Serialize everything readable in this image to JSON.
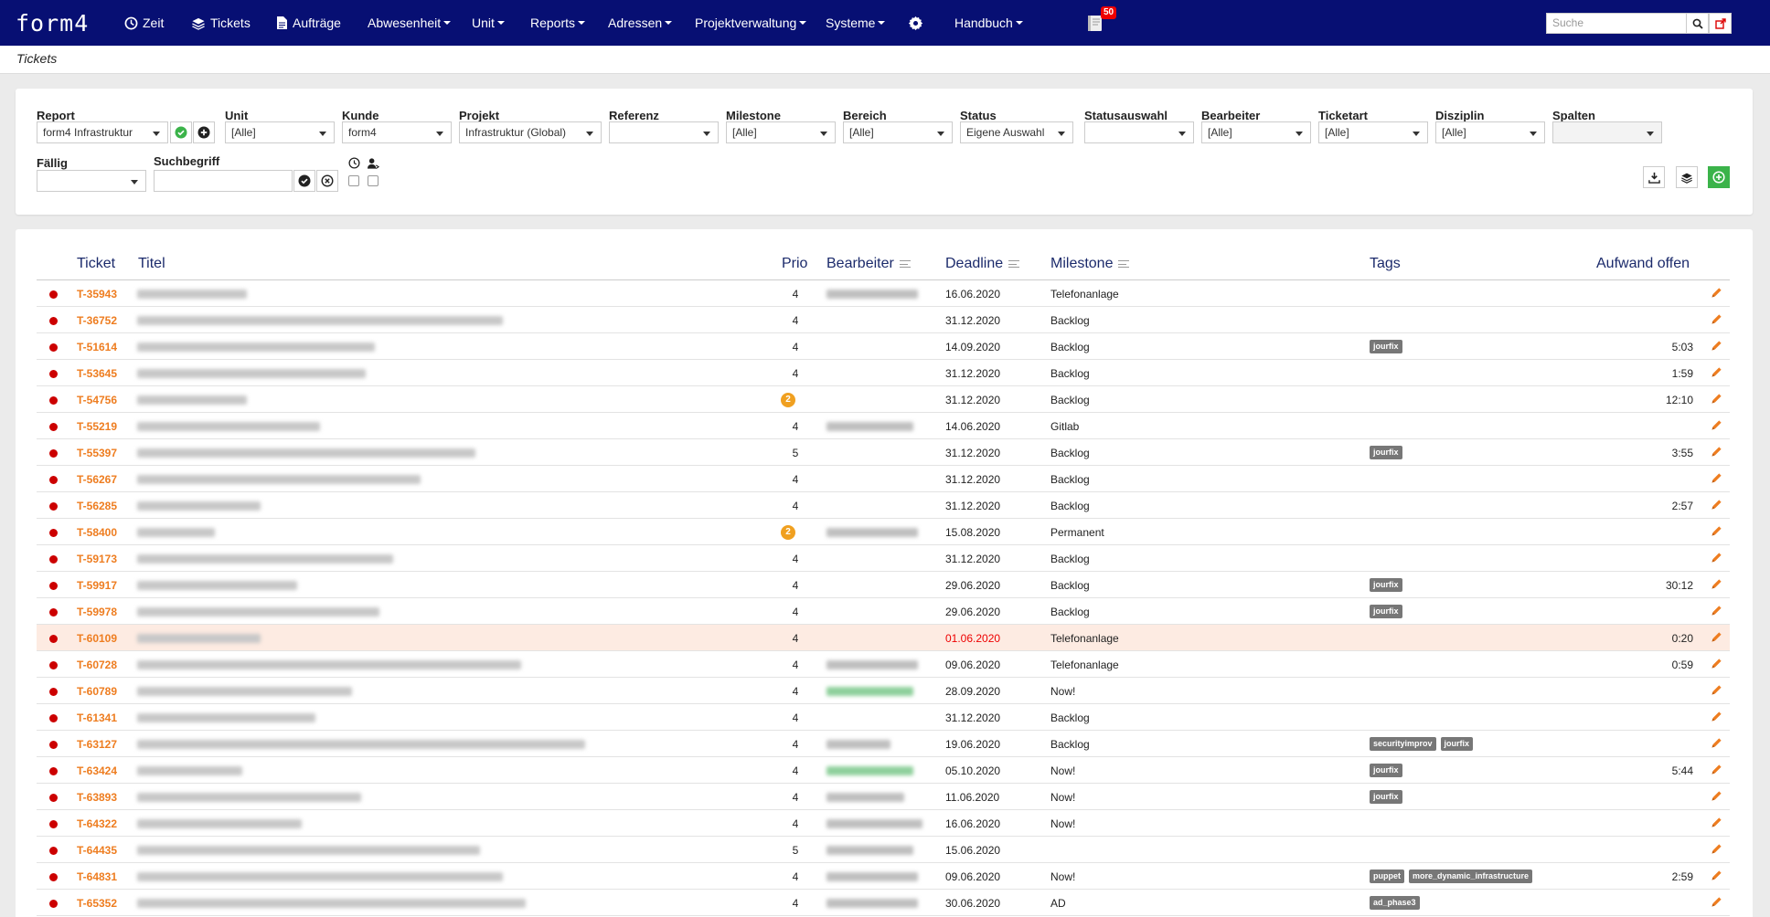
{
  "app": {
    "logo": "form4",
    "notification_count": "50"
  },
  "nav": [
    {
      "label": "Zeit",
      "icon": "clock-icon"
    },
    {
      "label": "Tickets",
      "icon": "layers-icon"
    },
    {
      "label": "Aufträge",
      "icon": "document-icon"
    },
    {
      "label": "Abwesenheit"
    },
    {
      "label": "Unit"
    },
    {
      "label": "Reports"
    },
    {
      "label": "Adressen"
    },
    {
      "label": "Projektverwaltung"
    },
    {
      "label": "Systeme"
    },
    {
      "label": "Handbuch"
    }
  ],
  "search": {
    "placeholder": "Suche"
  },
  "breadcrumb": "Tickets",
  "filters": {
    "report": {
      "label": "Report",
      "value": "form4 Infrastruktur"
    },
    "unit": {
      "label": "Unit",
      "value": "[Alle]"
    },
    "kunde": {
      "label": "Kunde",
      "value": "form4"
    },
    "projekt": {
      "label": "Projekt",
      "value": "Infrastruktur (Global)"
    },
    "referenz": {
      "label": "Referenz",
      "value": ""
    },
    "milestone": {
      "label": "Milestone",
      "value": "[Alle]"
    },
    "bereich": {
      "label": "Bereich",
      "value": "[Alle]"
    },
    "status": {
      "label": "Status",
      "value": "Eigene Auswahl"
    },
    "statusauswahl": {
      "label": "Statusauswahl",
      "value": ""
    },
    "bearbeiter": {
      "label": "Bearbeiter",
      "value": "[Alle]"
    },
    "ticketart": {
      "label": "Ticketart",
      "value": "[Alle]"
    },
    "disziplin": {
      "label": "Disziplin",
      "value": "[Alle]"
    },
    "spalten": {
      "label": "Spalten",
      "value": ""
    },
    "faellig": {
      "label": "Fällig",
      "value": ""
    },
    "suchbegriff": {
      "label": "Suchbegriff",
      "value": ""
    }
  },
  "table": {
    "headers": {
      "ticket": "Ticket",
      "titel": "Titel",
      "prio": "Prio",
      "bearbeiter": "Bearbeiter",
      "deadline": "Deadline",
      "milestone": "Milestone",
      "tags": "Tags",
      "aufwand": "Aufwand offen"
    },
    "rows": [
      {
        "ticket": "T-35943",
        "prio": "4",
        "deadline": "16.06.2020",
        "milestone": "Telefonanlage",
        "tags": [],
        "aufwand": ""
      },
      {
        "ticket": "T-36752",
        "prio": "4",
        "deadline": "31.12.2020",
        "milestone": "Backlog",
        "tags": [],
        "aufwand": ""
      },
      {
        "ticket": "T-51614",
        "prio": "4",
        "deadline": "14.09.2020",
        "milestone": "Backlog",
        "tags": [
          "jourfix"
        ],
        "aufwand": "5:03"
      },
      {
        "ticket": "T-53645",
        "prio": "4",
        "deadline": "31.12.2020",
        "milestone": "Backlog",
        "tags": [],
        "aufwand": "1:59"
      },
      {
        "ticket": "T-54756",
        "prio": "2",
        "deadline": "31.12.2020",
        "milestone": "Backlog",
        "tags": [],
        "aufwand": "12:10"
      },
      {
        "ticket": "T-55219",
        "prio": "4",
        "deadline": "14.06.2020",
        "milestone": "Gitlab",
        "tags": [],
        "aufwand": ""
      },
      {
        "ticket": "T-55397",
        "prio": "5",
        "deadline": "31.12.2020",
        "milestone": "Backlog",
        "tags": [
          "jourfix"
        ],
        "aufwand": "3:55"
      },
      {
        "ticket": "T-56267",
        "prio": "4",
        "deadline": "31.12.2020",
        "milestone": "Backlog",
        "tags": [],
        "aufwand": ""
      },
      {
        "ticket": "T-56285",
        "prio": "4",
        "deadline": "31.12.2020",
        "milestone": "Backlog",
        "tags": [],
        "aufwand": "2:57"
      },
      {
        "ticket": "T-58400",
        "prio": "2",
        "deadline": "15.08.2020",
        "milestone": "Permanent",
        "tags": [],
        "aufwand": ""
      },
      {
        "ticket": "T-59173",
        "prio": "4",
        "deadline": "31.12.2020",
        "milestone": "Backlog",
        "tags": [],
        "aufwand": ""
      },
      {
        "ticket": "T-59917",
        "prio": "4",
        "deadline": "29.06.2020",
        "milestone": "Backlog",
        "tags": [
          "jourfix"
        ],
        "aufwand": "30:12"
      },
      {
        "ticket": "T-59978",
        "prio": "4",
        "deadline": "29.06.2020",
        "milestone": "Backlog",
        "tags": [
          "jourfix"
        ],
        "aufwand": ""
      },
      {
        "ticket": "T-60109",
        "prio": "4",
        "deadline": "01.06.2020",
        "milestone": "Telefonanlage",
        "tags": [],
        "aufwand": "0:20"
      },
      {
        "ticket": "T-60728",
        "prio": "4",
        "deadline": "09.06.2020",
        "milestone": "Telefonanlage",
        "tags": [],
        "aufwand": "0:59"
      },
      {
        "ticket": "T-60789",
        "prio": "4",
        "deadline": "28.09.2020",
        "milestone": "Now!",
        "tags": [],
        "aufwand": ""
      },
      {
        "ticket": "T-61341",
        "prio": "4",
        "deadline": "31.12.2020",
        "milestone": "Backlog",
        "tags": [],
        "aufwand": ""
      },
      {
        "ticket": "T-63127",
        "prio": "4",
        "deadline": "19.06.2020",
        "milestone": "Backlog",
        "tags": [
          "securityimprov",
          "jourfix"
        ],
        "aufwand": ""
      },
      {
        "ticket": "T-63424",
        "prio": "4",
        "deadline": "05.10.2020",
        "milestone": "Now!",
        "tags": [
          "jourfix"
        ],
        "aufwand": "5:44"
      },
      {
        "ticket": "T-63893",
        "prio": "4",
        "deadline": "11.06.2020",
        "milestone": "Now!",
        "tags": [
          "jourfix"
        ],
        "aufwand": ""
      },
      {
        "ticket": "T-64322",
        "prio": "4",
        "deadline": "16.06.2020",
        "milestone": "Now!",
        "tags": [],
        "aufwand": ""
      },
      {
        "ticket": "T-64435",
        "prio": "5",
        "deadline": "15.06.2020",
        "milestone": "",
        "tags": [],
        "aufwand": ""
      },
      {
        "ticket": "T-64831",
        "prio": "4",
        "deadline": "09.06.2020",
        "milestone": "Now!",
        "tags": [
          "puppet",
          "more_dynamic_infrastructure"
        ],
        "aufwand": "2:59"
      },
      {
        "ticket": "T-65352",
        "prio": "4",
        "deadline": "30.06.2020",
        "milestone": "AD",
        "tags": [
          "ad_phase3"
        ],
        "aufwand": ""
      }
    ]
  },
  "colors": {
    "nav_bg": "#070f73",
    "ticket_link": "#ee7d20",
    "priority_dot": "#cc0000",
    "highlight_row": "#fdebe2",
    "overdue": "#ee0000"
  }
}
